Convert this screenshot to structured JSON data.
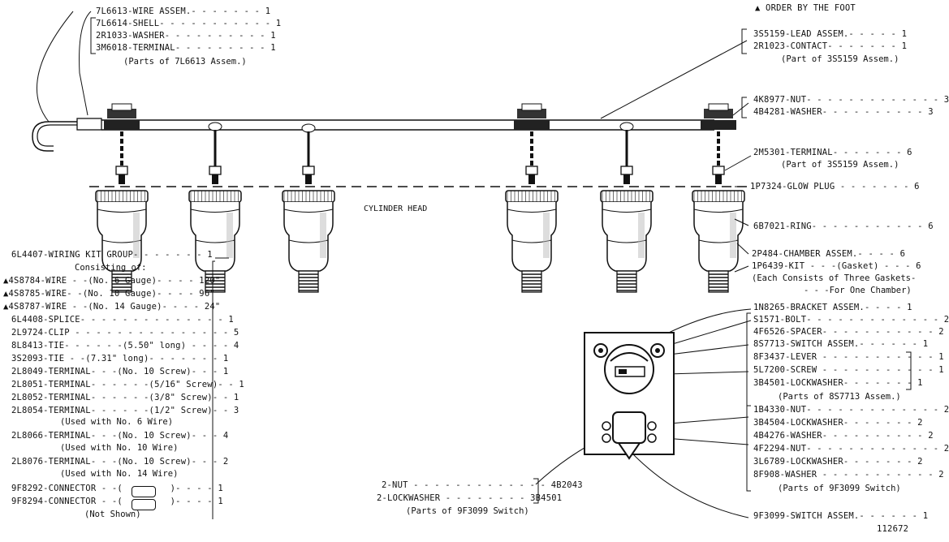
{
  "header": {
    "note": "▲ ORDER BY THE FOOT",
    "figure_number": "112672",
    "cylinder_head": "CYLINDER HEAD"
  },
  "top_left": [
    "7L6613-WIRE ASSEM.- - - - - - - 1",
    "7L6614-SHELL- - - - - - - - - - - 1",
    "2R1033-WASHER- - - - - - - - - - 1",
    "3M6018-TERMINAL- - - - - - - - - 1",
    "(Parts of 7L6613 Assem.)"
  ],
  "top_right": [
    "3S5159-LEAD ASSEM.- - - - - 1",
    "2R1023-CONTACT- - - - - - - 1",
    "(Part of 3S5159 Assem.)"
  ],
  "nut_washer": [
    "4K8977-NUT- - - - - - - - - - - - - 3",
    "4B4281-WASHER- - - - - - - - - - 3"
  ],
  "terminal": [
    "2M5301-TERMINAL- - - - - - - 6",
    "(Part of 3S5159 Assem.)"
  ],
  "plug_labels": [
    "1P7324-GLOW PLUG - - - - - - - 6",
    "6B7021-RING- - - - - - - - - - - 6",
    "2P484-CHAMBER ASSEM.- - - - 6",
    "1P6439-KIT - - -(Gasket) - - - 6",
    "(Each Consists of Three Gaskets-",
    "- - -For One Chamber)"
  ],
  "wiring_kit": [
    "6L4407-WIRING KIT GROUP- - - - - - - 1",
    "Consisting of:",
    "▲4S8784-WIRE - -(No. 6 Gauge)- - - - 120\"",
    "▲4S8785-WIRE- -(No. 10 Gauge)- - - - 96\"",
    "▲4S8787-WIRE - -(No. 14 Gauge)- - - - 24\"",
    "6L4408-SPLICE- - - - - - - - - - - - - - 1",
    "2L9724-CLIP - - - - - - - - - - - - - - - 5",
    "8L8413-TIE- - - - - -(5.50\" long) - - - - 4",
    "3S2093-TIE - -(7.31\" long)- - - - - - - 1",
    "2L8049-TERMINAL- - -(No. 10 Screw)- - - 1",
    "2L8051-TERMINAL- - - - - -(5/16\" Screw)- - 1",
    "2L8052-TERMINAL- - - - - -(3/8\" Screw)- - 1",
    "2L8054-TERMINAL- - - - - -(1/2\" Screw)- - 3",
    "(Used with No. 6 Wire)",
    "2L8066-TERMINAL- - -(No. 10 Screw)- - - 4",
    "(Used with No. 10 Wire)",
    "2L8076-TERMINAL- - -(No. 10 Screw)- - - 2",
    "(Used with No. 14 Wire)",
    "9F8292-CONNECTOR - -(         )- - - - 1",
    "9F8294-CONNECTOR - -(         )- - - - 1",
    "(Not Shown)"
  ],
  "switch_parts": [
    "1N8265-BRACKET ASSEM.- - - - 1",
    "S1571-BOLT- - - - - - - - - - - - - 2",
    "4F6526-SPACER- - - - - - - - - - - 2",
    "8S7713-SWITCH ASSEM.- - - - - - 1",
    "8F3437-LEVER - - - - - - - - - - - 1",
    "5L7200-SCREW - - - - - - - - - - - 1",
    "3B4501-LOCKWASHER- - - - - - - 1",
    "(Parts of 8S7713 Assem.)",
    "1B4330-NUT- - - - - - - - - - - - - 2",
    "3B4504-LOCKWASHER- - - - - - - 2",
    "4B4276-WASHER- - - - - - - - - - 2",
    "4F2294-NUT- - - - - - - - - - - - - 2",
    "3L6789-LOCKWASHER- - - - - - - 2",
    "8F908-WASHER - - - - - - - - - - - 2",
    "(Parts of 9F3099 Switch)"
  ],
  "switch_small": [
    "2-NUT - - - - - - - - - - - - - 4B2043",
    "2-LOCKWASHER - - - - - - - - 3B4501",
    "(Parts of 9F3099 Switch)"
  ],
  "switch_assem": "9F3099-SWITCH ASSEM.- - - - - - 1"
}
